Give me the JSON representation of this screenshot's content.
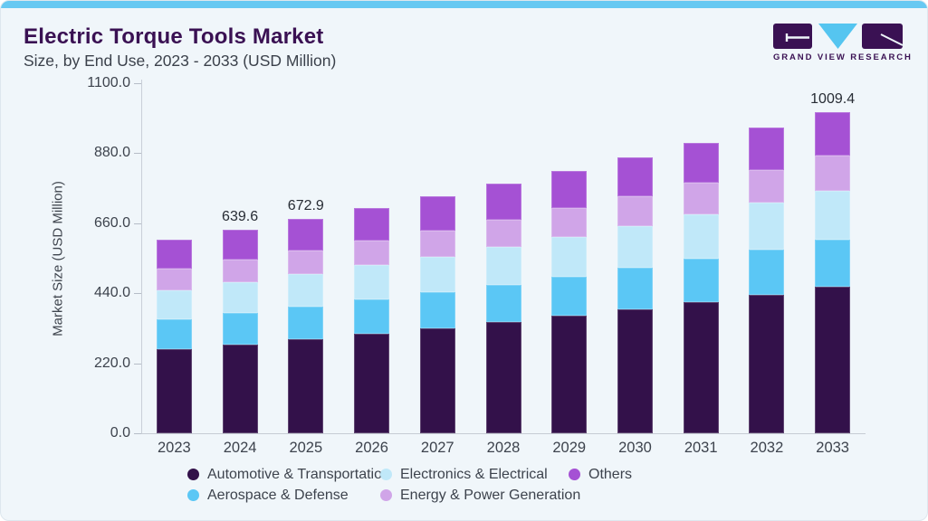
{
  "logo": {
    "text": "GRAND VIEW RESEARCH",
    "mark_dark_color": "#3a1153",
    "mark_cyan_color": "#55c5f0"
  },
  "colors": {
    "top_accent": "#67c9f2",
    "card_background": "#f0f6fa",
    "title_text": "#3a1153",
    "axis_text": "#3d434d"
  },
  "chart_data": {
    "type": "bar",
    "stacked": true,
    "title": "Electric Torque Tools Market",
    "subtitle": "Size, by End Use, 2023 - 2033 (USD Million)",
    "xlabel": "",
    "ylabel": "Market Size (USD Million)",
    "ylim": [
      0,
      1100
    ],
    "yticks": [
      "0.0",
      "220.0",
      "440.0",
      "660.0",
      "880.0",
      "1100.0"
    ],
    "grid": false,
    "legend_position": "bottom",
    "categories": [
      "2023",
      "2024",
      "2025",
      "2026",
      "2027",
      "2028",
      "2029",
      "2030",
      "2031",
      "2032",
      "2033"
    ],
    "series": [
      {
        "name": "Automotive & Transportation",
        "color": "#33114a",
        "values": [
          264.5,
          279.5,
          295.4,
          312.2,
          329.9,
          348.6,
          368.4,
          389.3,
          411.4,
          434.7,
          459.3
        ]
      },
      {
        "name": "Aerospace & Defense",
        "color": "#5bc7f5",
        "values": [
          94.2,
          98.5,
          103.0,
          108.3,
          113.2,
          118.3,
          124.5,
          130.1,
          135.9,
          142.0,
          148.4
        ]
      },
      {
        "name": "Electronics & Electrical",
        "color": "#c0e8f9",
        "values": [
          91.2,
          95.9,
          101.6,
          106.9,
          112.4,
          119.1,
          125.3,
          131.8,
          139.6,
          146.8,
          154.4
        ]
      },
      {
        "name": "Energy & Power Generation",
        "color": "#d0a5e8",
        "values": [
          68.1,
          71.0,
          74.7,
          78.6,
          81.9,
          86.2,
          90.7,
          94.5,
          99.4,
          104.6,
          111.0
        ]
      },
      {
        "name": "Others",
        "color": "#a551d4",
        "values": [
          90.0,
          94.7,
          98.2,
          101.9,
          107.3,
          111.2,
          115.3,
          121.3,
          125.8,
          131.4,
          136.3
        ]
      }
    ],
    "totals": [
      608.0,
      639.6,
      672.9,
      707.9,
      744.7,
      783.4,
      824.2,
      867.0,
      912.1,
      959.5,
      1009.4
    ],
    "shown_total_labels": {
      "2024": "639.6",
      "2025": "672.9",
      "2033": "1009.4"
    },
    "legend_layout": {
      "rows": [
        [
          0,
          2,
          4
        ],
        [
          1,
          3
        ]
      ]
    }
  }
}
